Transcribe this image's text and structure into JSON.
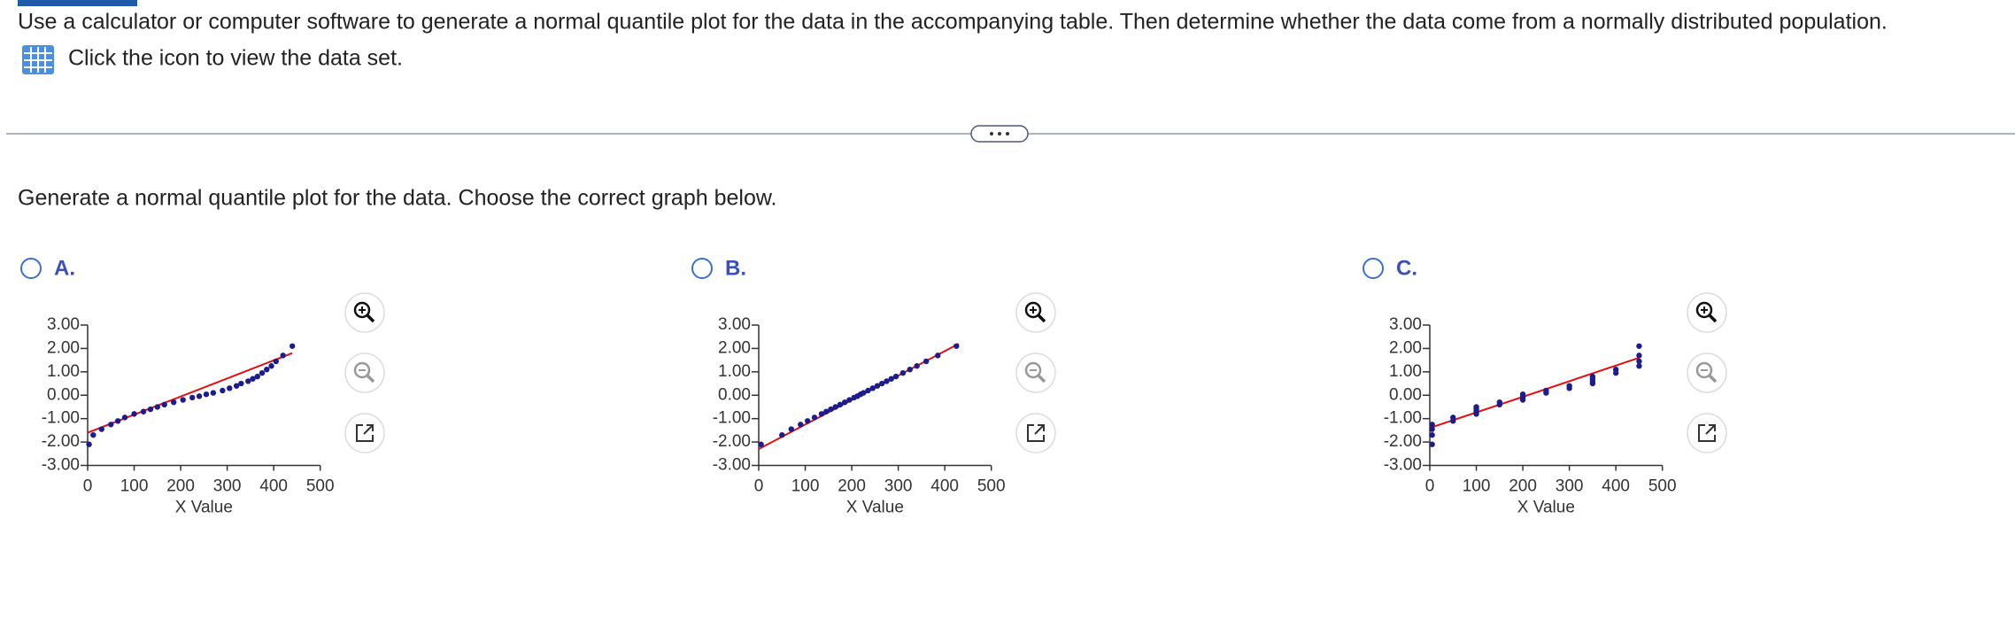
{
  "question": "Use a calculator or computer software to generate a normal quantile plot for the data in the accompanying table. Then determine whether the data come from a normally distributed population.",
  "data_link": "Click the icon to view the data set.",
  "prompt": "Generate a normal quantile plot for the data. Choose the correct graph below.",
  "options": [
    {
      "label": "A.",
      "chart": {
        "type": "scatter",
        "xlabel": "X Value",
        "xlim": [
          0,
          500
        ],
        "xticks": [
          0,
          100,
          200,
          300,
          400,
          500
        ],
        "ylim": [
          -3,
          3
        ],
        "yticks": [
          {
            "value": 3,
            "label": "3.00"
          },
          {
            "value": 2,
            "label": "2.00"
          },
          {
            "value": 1,
            "label": "1.00"
          },
          {
            "value": 0,
            "label": "0.00"
          },
          {
            "value": -1,
            "label": "-1.00"
          },
          {
            "value": -2,
            "label": "-2.00"
          },
          {
            "value": -3,
            "label": "-3.00"
          }
        ],
        "color": "#1c1c8a",
        "line_color": "#e01010",
        "x": [
          3,
          12,
          30,
          50,
          65,
          80,
          100,
          120,
          135,
          150,
          165,
          185,
          205,
          225,
          240,
          255,
          270,
          290,
          305,
          320,
          330,
          345,
          355,
          365,
          375,
          385,
          395,
          405,
          420,
          440
        ],
        "y": [
          -2.1,
          -1.7,
          -1.45,
          -1.25,
          -1.1,
          -0.95,
          -0.8,
          -0.7,
          -0.6,
          -0.5,
          -0.4,
          -0.3,
          -0.2,
          -0.1,
          -0.04,
          0.04,
          0.1,
          0.2,
          0.3,
          0.4,
          0.5,
          0.6,
          0.7,
          0.8,
          0.95,
          1.1,
          1.25,
          1.45,
          1.7,
          2.1
        ],
        "fit_line": {
          "x": [
            0,
            440
          ],
          "y": [
            -1.6,
            1.8
          ]
        }
      }
    },
    {
      "label": "B.",
      "chart": {
        "type": "scatter",
        "xlabel": "X Value",
        "xlim": [
          0,
          500
        ],
        "xticks": [
          0,
          100,
          200,
          300,
          400,
          500
        ],
        "ylim": [
          -3,
          3
        ],
        "yticks": [
          {
            "value": 3,
            "label": "3.00"
          },
          {
            "value": 2,
            "label": "2.00"
          },
          {
            "value": 1,
            "label": "1.00"
          },
          {
            "value": 0,
            "label": "0.00"
          },
          {
            "value": -1,
            "label": "-1.00"
          },
          {
            "value": -2,
            "label": "-2.00"
          },
          {
            "value": -3,
            "label": "-3.00"
          }
        ],
        "color": "#1c1c8a",
        "line_color": "#e01010",
        "x": [
          5,
          50,
          70,
          90,
          105,
          120,
          135,
          145,
          155,
          165,
          175,
          185,
          195,
          205,
          212,
          219,
          225,
          235,
          245,
          255,
          265,
          275,
          285,
          295,
          310,
          325,
          340,
          360,
          385,
          425
        ],
        "y": [
          -2.1,
          -1.7,
          -1.45,
          -1.25,
          -1.1,
          -0.95,
          -0.8,
          -0.7,
          -0.6,
          -0.5,
          -0.4,
          -0.3,
          -0.2,
          -0.1,
          -0.04,
          0.04,
          0.1,
          0.2,
          0.3,
          0.4,
          0.5,
          0.6,
          0.7,
          0.8,
          0.95,
          1.1,
          1.25,
          1.45,
          1.7,
          2.1
        ],
        "fit_line": {
          "x": [
            0,
            430
          ],
          "y": [
            -2.3,
            2.2
          ]
        }
      }
    },
    {
      "label": "C.",
      "chart": {
        "type": "scatter",
        "xlabel": "X Value",
        "xlim": [
          0,
          500
        ],
        "xticks": [
          0,
          100,
          200,
          300,
          400,
          500
        ],
        "ylim": [
          -3,
          3
        ],
        "yticks": [
          {
            "value": 3,
            "label": "3.00"
          },
          {
            "value": 2,
            "label": "2.00"
          },
          {
            "value": 1,
            "label": "1.00"
          },
          {
            "value": 0,
            "label": "0.00"
          },
          {
            "value": -1,
            "label": "-1.00"
          },
          {
            "value": -2,
            "label": "-2.00"
          },
          {
            "value": -3,
            "label": "-3.00"
          }
        ],
        "color": "#1c1c8a",
        "line_color": "#e01010",
        "x": [
          5,
          5,
          5,
          5,
          50,
          50,
          100,
          100,
          100,
          100,
          150,
          150,
          200,
          200,
          200,
          200,
          250,
          250,
          300,
          300,
          350,
          350,
          350,
          350,
          400,
          400,
          450,
          450,
          450,
          450
        ],
        "y": [
          -2.1,
          -1.7,
          -1.45,
          -1.25,
          -1.1,
          -0.95,
          -0.8,
          -0.7,
          -0.6,
          -0.5,
          -0.4,
          -0.3,
          -0.2,
          -0.1,
          -0.04,
          0.04,
          0.1,
          0.2,
          0.3,
          0.4,
          0.5,
          0.6,
          0.7,
          0.8,
          0.95,
          1.1,
          1.25,
          1.45,
          1.7,
          2.1
        ],
        "fit_line": {
          "x": [
            0,
            450
          ],
          "y": [
            -1.4,
            1.6
          ]
        }
      }
    }
  ]
}
